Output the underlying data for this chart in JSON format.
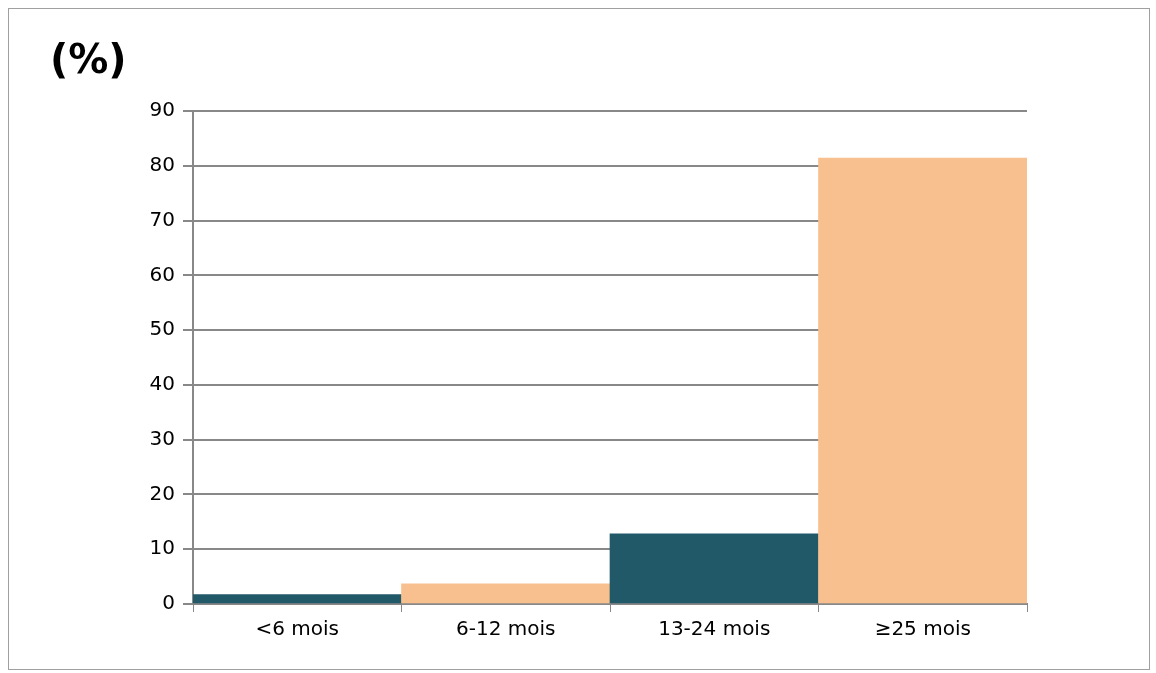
{
  "chart_data": {
    "type": "bar",
    "ylabel": "(%)",
    "categories": [
      "<6 mois",
      "6-12 mois",
      "13-24 mois",
      "≥25 mois"
    ],
    "values": [
      1.7,
      3.7,
      12.8,
      81.4
    ],
    "colors": [
      "#215968",
      "#f9c08f",
      "#215968",
      "#f9c08f"
    ],
    "ylim": [
      0,
      90
    ],
    "yticks": [
      0,
      10,
      20,
      30,
      40,
      50,
      60,
      70,
      80,
      90
    ],
    "grid": "y",
    "legend": false
  }
}
